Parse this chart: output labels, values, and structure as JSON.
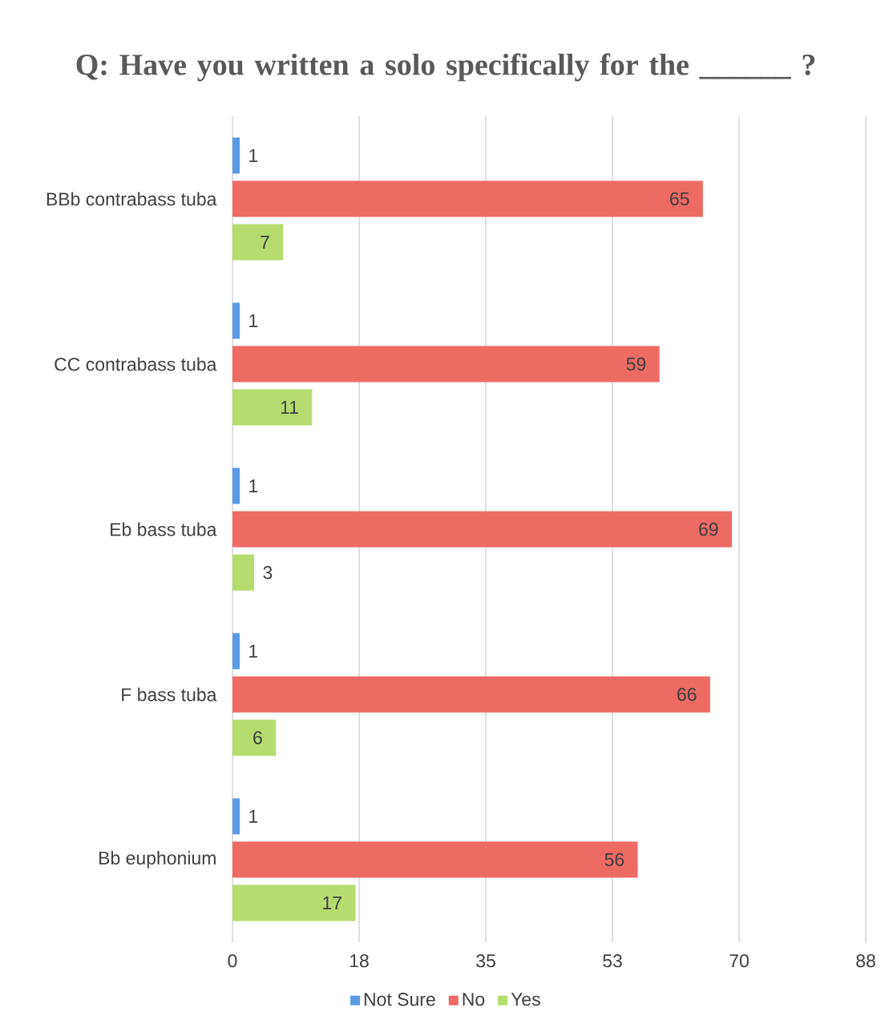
{
  "chart_data": {
    "type": "bar",
    "orientation": "horizontal",
    "title": "Q: Have you written a solo specifically for the ______ ?",
    "categories": [
      "BBb contrabass tuba",
      "CC contrabass tuba",
      "Eb bass tuba",
      "F bass tuba",
      "Bb euphonium"
    ],
    "series": [
      {
        "name": "Not Sure",
        "color": "#5b9be6",
        "values": [
          1,
          1,
          1,
          1,
          1
        ]
      },
      {
        "name": "No",
        "color": "#ee6a64",
        "values": [
          65,
          59,
          69,
          66,
          56
        ]
      },
      {
        "name": "Yes",
        "color": "#b4dc6e",
        "values": [
          7,
          11,
          3,
          6,
          17
        ]
      }
    ],
    "xlim": [
      0,
      87.5
    ],
    "xticks": [
      0,
      {
        "value": 17.5,
        "label": "18"
      },
      35,
      {
        "value": 52.5,
        "label": "53"
      },
      70,
      {
        "value": 87.5,
        "label": "88"
      }
    ],
    "grid": "x",
    "legend": "bottom",
    "data_labels": true
  }
}
